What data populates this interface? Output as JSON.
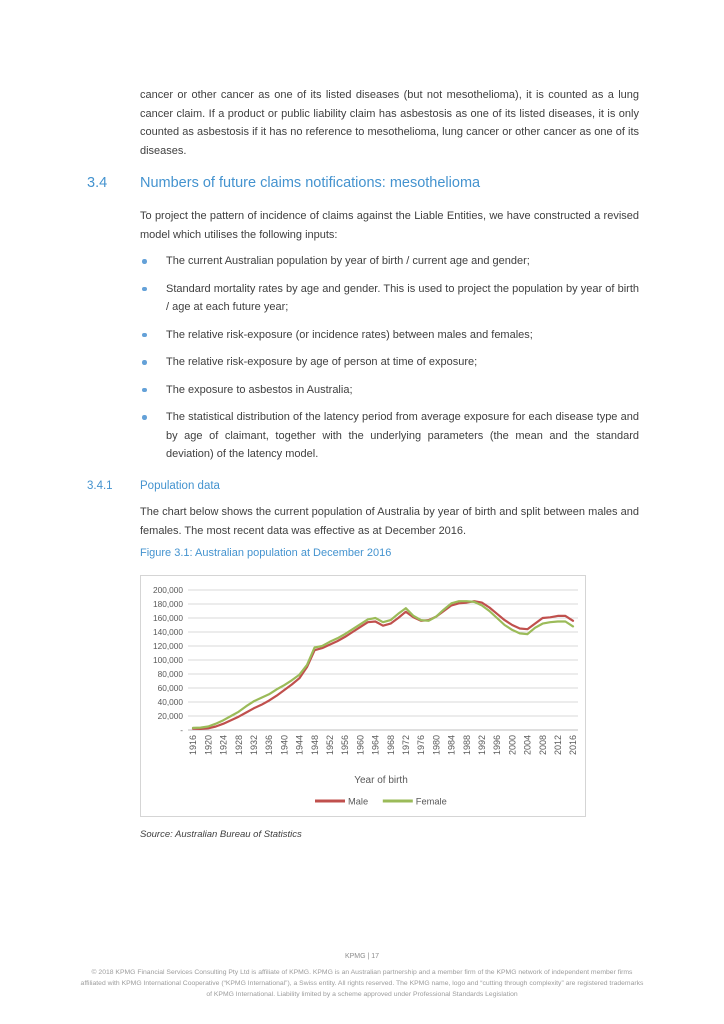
{
  "page": {
    "intro_paragraph": "cancer or other cancer as one of its listed diseases (but not mesothelioma), it is counted as a lung cancer claim. If a product or public liability claim has asbestosis as one of its listed diseases, it is only counted as asbestosis if it has no reference to mesothelioma, lung cancer or other cancer as one of its diseases.",
    "section": {
      "number": "3.4",
      "title": "Numbers of future claims notifications: mesothelioma"
    },
    "section_intro": "To project the pattern of incidence of claims against the Liable Entities, we have constructed a revised model which utilises the following inputs:",
    "bullets": [
      "The current Australian population by year of birth / current age and gender;",
      "Standard mortality rates by age and gender. This is used to project the population by year of birth / age at each future year;",
      "The relative risk-exposure (or incidence rates) between males and females;",
      "The relative risk-exposure by age of person at time of exposure;",
      "The exposure to asbestos in Australia;",
      "The statistical distribution of the latency period from average exposure for each disease type and by age of claimant, together with the underlying parameters (the mean and the standard deviation) of the latency model."
    ],
    "subsection": {
      "number": "3.4.1",
      "title": "Population data"
    },
    "subsection_paragraph": "The chart below shows the current population of Australia by year of birth and split between males and females. The most recent data was effective as at December 2016.",
    "figure_caption": "Figure 3.1: Australian population at December 2016",
    "source": "Source: Australian Bureau of Statistics",
    "footer": {
      "page_label": "KPMG | 17",
      "disclaimer": "© 2018 KPMG Financial Services Consulting Pty Ltd is affiliate of KPMG. KPMG is an Australian partnership and a member firm of the KPMG network of independent member firms affiliated with KPMG International Cooperative (“KPMG International”), a Swiss entity. All rights reserved. The KPMG name, logo and “cutting through complexity” are registered trademarks of KPMG International. Liability limited by a scheme approved under Professional Standards Legislation"
    }
  },
  "chart_data": {
    "type": "line",
    "title": "Australian population at December 2016",
    "xlabel": "Year of birth",
    "ylabel": "",
    "ylim": [
      0,
      200000
    ],
    "ytick_step": 20000,
    "ytick_labels": [
      "-",
      "20,000",
      "40,000",
      "60,000",
      "80,000",
      "100,000",
      "120,000",
      "140,000",
      "160,000",
      "180,000",
      "200,000"
    ],
    "grid": "horizontal",
    "legend_position": "bottom",
    "x": [
      1916,
      1918,
      1920,
      1922,
      1924,
      1926,
      1928,
      1930,
      1932,
      1934,
      1936,
      1938,
      1940,
      1942,
      1944,
      1946,
      1948,
      1950,
      1952,
      1954,
      1956,
      1958,
      1960,
      1962,
      1964,
      1966,
      1968,
      1970,
      1972,
      1974,
      1976,
      1978,
      1980,
      1982,
      1984,
      1986,
      1988,
      1990,
      1992,
      1994,
      1996,
      1998,
      2000,
      2002,
      2004,
      2006,
      2008,
      2010,
      2012,
      2014,
      2016
    ],
    "xtick_labels": [
      "1916",
      "1920",
      "1924",
      "1928",
      "1932",
      "1936",
      "1940",
      "1944",
      "1948",
      "1952",
      "1956",
      "1960",
      "1964",
      "1968",
      "1972",
      "1976",
      "1980",
      "1984",
      "1988",
      "1992",
      "1996",
      "2000",
      "2004",
      "2008",
      "2012",
      "2016"
    ],
    "series": [
      {
        "name": "Male",
        "color": "#c0504d",
        "values": [
          2000,
          1500,
          2500,
          5000,
          9000,
          14000,
          19000,
          25000,
          31000,
          36000,
          42000,
          49000,
          57000,
          65000,
          74000,
          90000,
          114000,
          117000,
          122000,
          127000,
          133000,
          140000,
          147000,
          154000,
          155000,
          149000,
          152000,
          160000,
          169000,
          161000,
          156000,
          157000,
          162000,
          170000,
          178000,
          181000,
          182000,
          184000,
          182000,
          175000,
          166000,
          157000,
          150000,
          145000,
          144000,
          152000,
          160000,
          161000,
          163000,
          163000,
          156000
        ]
      },
      {
        "name": "Female",
        "color": "#9bbb59",
        "values": [
          3000,
          3500,
          5000,
          9000,
          14000,
          20000,
          26000,
          34000,
          41000,
          46000,
          51000,
          58000,
          64000,
          71000,
          79000,
          93000,
          118000,
          120000,
          126000,
          131000,
          137000,
          144000,
          151000,
          158000,
          160000,
          154000,
          157000,
          166000,
          174000,
          163000,
          157000,
          156000,
          162000,
          172000,
          181000,
          184000,
          184000,
          183000,
          178000,
          170000,
          160000,
          150000,
          143000,
          138000,
          137000,
          146000,
          152000,
          154000,
          155000,
          155000,
          148000
        ]
      }
    ]
  }
}
